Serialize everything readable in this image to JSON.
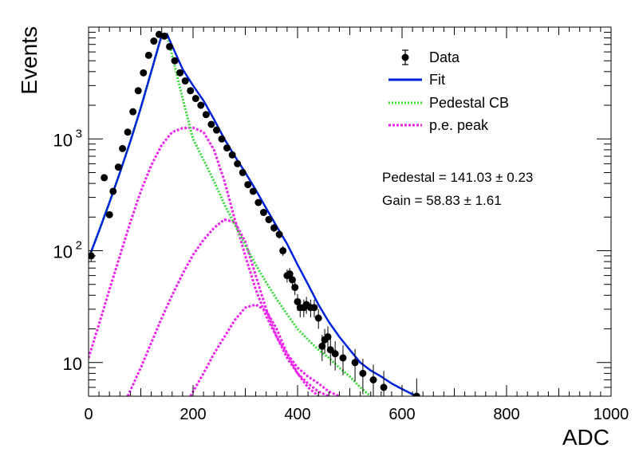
{
  "chart_data": {
    "type": "scatter",
    "xlabel": "ADC",
    "ylabel": "Events",
    "xlim": [
      0,
      1000
    ],
    "ylim": [
      5,
      10000
    ],
    "yscale": "log",
    "x_ticks": [
      0,
      200,
      400,
      600,
      800,
      1000
    ],
    "x_tick_labels": [
      "0",
      "200",
      "400",
      "600",
      "800",
      "1000"
    ],
    "y_ticks": [
      10,
      100,
      1000
    ],
    "y_tick_labels": [
      "10",
      "10²",
      "10³"
    ],
    "legend_position": "top-right",
    "legend": [
      {
        "label": "Data",
        "style": "marker"
      },
      {
        "label": "Fit",
        "style": "solid"
      },
      {
        "label": "Pedestal CB",
        "style": "dotted"
      },
      {
        "label": "p.e. peak",
        "style": "dotted"
      }
    ],
    "annotations": [
      "Pedestal = 141.03 ± 0.23",
      "Gain = 58.83 ± 1.61"
    ],
    "colors": {
      "data": "#000000",
      "fit": "#0022dd",
      "pedestal": "#33dd33",
      "pe": "#ee22ee"
    },
    "data": {
      "x": [
        5,
        30,
        40,
        47,
        57,
        65,
        75,
        85,
        95,
        105,
        115,
        125,
        135,
        145,
        155,
        165,
        175,
        185,
        195,
        205,
        215,
        225,
        235,
        245,
        255,
        265,
        275,
        285,
        295,
        305,
        315,
        325,
        335,
        345,
        355,
        365,
        372,
        380,
        385,
        390,
        395,
        400,
        405,
        412,
        417,
        425,
        432,
        440,
        447,
        452,
        458,
        463,
        472,
        487,
        510,
        525,
        545,
        565,
        628
      ],
      "y": [
        90,
        450,
        210,
        340,
        560,
        820,
        1150,
        1750,
        2700,
        3900,
        5600,
        7500,
        8600,
        8300,
        6700,
        5000,
        3900,
        3300,
        2700,
        2300,
        2000,
        1650,
        1350,
        1200,
        1000,
        830,
        720,
        600,
        500,
        390,
        340,
        270,
        220,
        190,
        160,
        140,
        100,
        60,
        62,
        55,
        47,
        35,
        31,
        31,
        33,
        31,
        31,
        25,
        14,
        16,
        17,
        13,
        12,
        11,
        10,
        8,
        7,
        6,
        5
      ],
      "yerr": [
        10,
        21,
        14,
        18,
        24,
        29,
        34,
        42,
        52,
        62,
        75,
        87,
        93,
        91,
        82,
        71,
        62,
        57,
        52,
        48,
        45,
        41,
        37,
        35,
        32,
        29,
        27,
        24,
        22,
        20,
        18,
        16,
        15,
        14,
        13,
        12,
        10,
        8,
        8,
        7.4,
        6.9,
        5.9,
        5.6,
        5.6,
        5.7,
        5.6,
        5.6,
        5,
        3.7,
        4,
        4.1,
        3.6,
        3.5,
        3.3,
        3.2,
        2.8,
        2.6,
        2.4,
        2.2
      ]
    },
    "fit": {
      "x": [
        0,
        20,
        40,
        60,
        80,
        100,
        120,
        140,
        150,
        160,
        180,
        200,
        220,
        240,
        260,
        280,
        300,
        320,
        340,
        360,
        380,
        400,
        420,
        440,
        460,
        480,
        500,
        520,
        540,
        560,
        580,
        600,
        620,
        640
      ],
      "y": [
        85,
        150,
        270,
        500,
        950,
        1900,
        4000,
        8500,
        8700,
        6800,
        4200,
        3000,
        2200,
        1500,
        1000,
        700,
        500,
        350,
        240,
        165,
        115,
        75,
        50,
        33,
        23,
        17,
        13,
        10,
        8.5,
        7.5,
        6.5,
        5.8,
        5.2,
        4.8
      ]
    },
    "pedestal_cb": {
      "x": [
        0,
        20,
        40,
        60,
        80,
        100,
        120,
        140,
        150,
        160,
        180,
        200,
        220,
        240,
        260,
        280,
        300,
        320,
        340,
        360,
        380,
        400,
        420,
        440,
        460,
        480,
        500,
        520,
        540
      ],
      "y": [
        85,
        150,
        270,
        500,
        950,
        1900,
        4000,
        8400,
        8500,
        5600,
        2300,
        1000,
        650,
        420,
        260,
        170,
        112,
        75,
        52,
        37,
        27,
        20,
        16,
        13,
        11,
        9,
        7.5,
        6,
        5
      ]
    },
    "pe_peaks": [
      {
        "x": [
          0,
          20,
          40,
          60,
          80,
          100,
          120,
          140,
          160,
          180,
          200,
          220,
          240,
          260,
          280,
          300,
          320,
          340,
          360,
          380,
          400,
          420,
          440,
          460,
          480,
          500
        ],
        "y": [
          11,
          22,
          45,
          90,
          180,
          340,
          580,
          880,
          1150,
          1250,
          1260,
          1150,
          800,
          420,
          190,
          90,
          45,
          26,
          17,
          12,
          9,
          7.5,
          6.5,
          5.5,
          5,
          4.5
        ]
      },
      {
        "x": [
          75,
          100,
          120,
          140,
          160,
          180,
          200,
          220,
          240,
          260,
          280,
          300,
          320,
          340,
          360,
          380,
          400,
          420,
          440,
          460
        ],
        "y": [
          5,
          9,
          15,
          25,
          40,
          62,
          92,
          125,
          160,
          190,
          180,
          120,
          60,
          30,
          17,
          11,
          8,
          6.5,
          5.5,
          5
        ]
      },
      {
        "x": [
          195,
          220,
          240,
          260,
          280,
          300,
          320,
          340,
          360,
          380,
          400,
          420,
          440
        ],
        "y": [
          5,
          8,
          12,
          17,
          24,
          31,
          33,
          29,
          20,
          12,
          8,
          6,
          5
        ]
      }
    ]
  }
}
